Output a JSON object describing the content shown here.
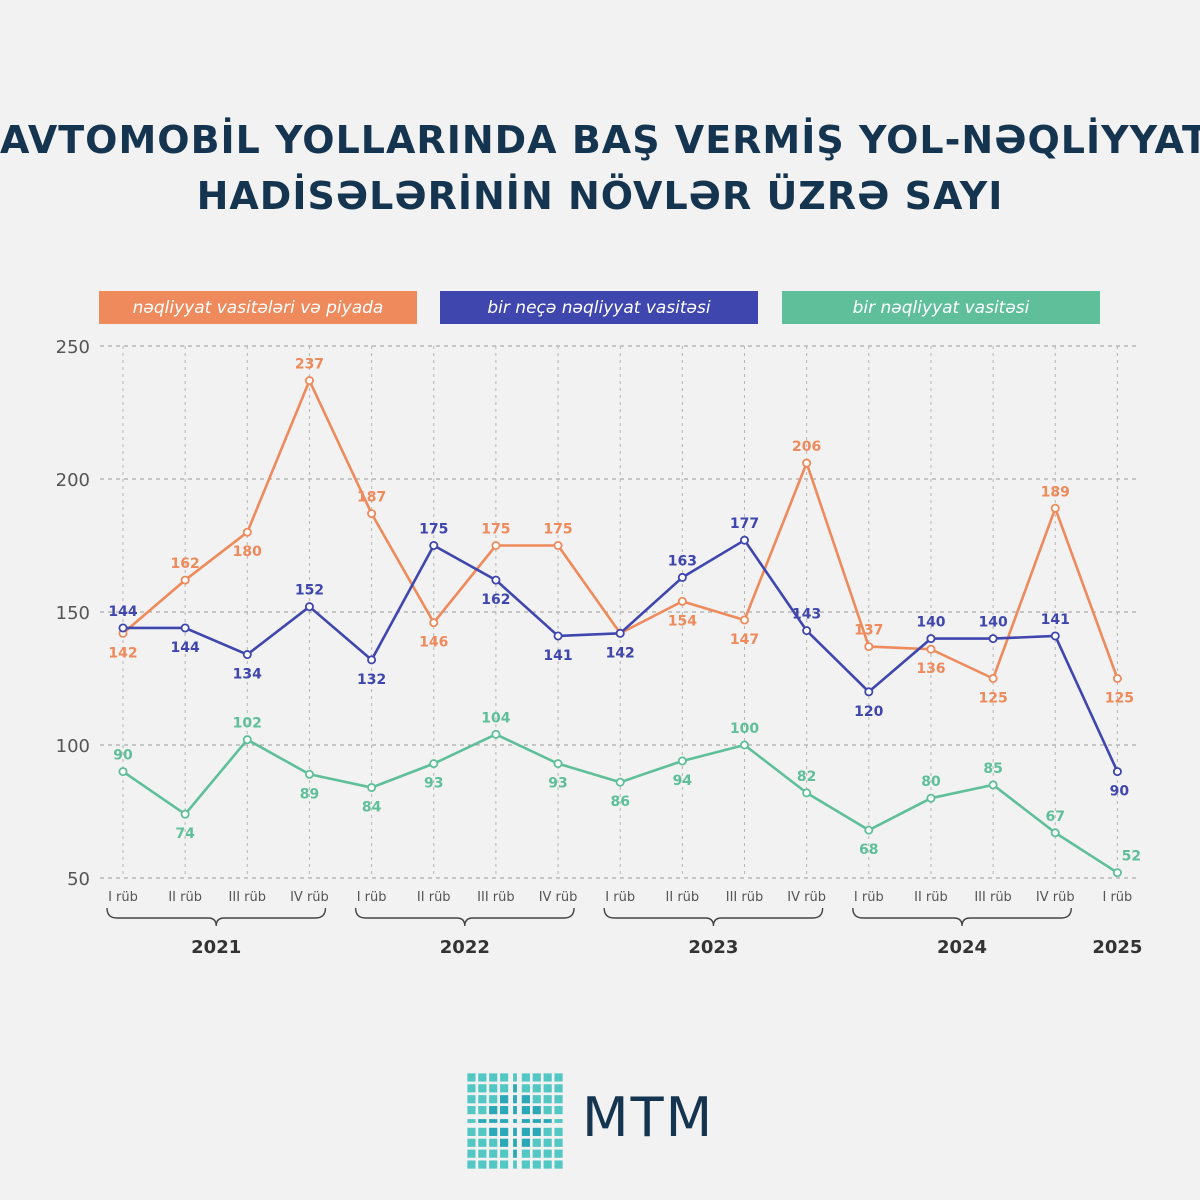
{
  "title": {
    "line1": "AVTOMOBİL YOLLARINDA BAŞ VERMİŞ YOL-NƏQLİYYAT",
    "line2": "HADİSƏLƏRİNİN NÖVLƏR ÜZRƏ SAYI"
  },
  "colors": {
    "orange": "#ee8a5c",
    "blue": "#3f46ad",
    "green": "#5fbf9b",
    "title": "#15344f",
    "axis": "#555555"
  },
  "brand": "MTM",
  "chart_data": {
    "type": "line",
    "title": "AVTOMOBİL YOLLARINDA BAŞ VERMİŞ YOL-NƏQLİYYAT HADİSƏLƏRİNİN NÖVLƏR ÜZRƏ SAYI",
    "categories": [
      "I rüb",
      "II rüb",
      "III rüb",
      "IV rüb",
      "I rüb",
      "II rüb",
      "III rüb",
      "IV rüb",
      "I rüb",
      "II rüb",
      "III rüb",
      "IV rüb",
      "I rüb",
      "II rüb",
      "III rüb",
      "IV rüb",
      "I rüb"
    ],
    "years": [
      {
        "label": "2021",
        "from": 0,
        "to": 3
      },
      {
        "label": "2022",
        "from": 4,
        "to": 7
      },
      {
        "label": "2023",
        "from": 8,
        "to": 11
      },
      {
        "label": "2024",
        "from": 12,
        "to": 15
      },
      {
        "label": "2025",
        "from": 16,
        "to": 16
      }
    ],
    "yticks": [
      50,
      100,
      150,
      200,
      250
    ],
    "ylim": [
      50,
      250
    ],
    "grid": true,
    "legend_position": "top",
    "series": [
      {
        "name": "nəqliyyat vasitələri və piyada",
        "color": "#ee8a5c",
        "values": [
          142,
          162,
          180,
          237,
          187,
          146,
          175,
          175,
          142,
          154,
          147,
          206,
          137,
          136,
          125,
          189,
          125
        ]
      },
      {
        "name": "bir neçə nəqliyyat vasitəsi",
        "color": "#3f46ad",
        "values": [
          144,
          144,
          134,
          152,
          132,
          175,
          162,
          141,
          142,
          163,
          177,
          143,
          120,
          140,
          140,
          141,
          90
        ]
      },
      {
        "name": "bir nəqliyyat vasitəsi",
        "color": "#5fbf9b",
        "values": [
          90,
          74,
          102,
          89,
          84,
          93,
          104,
          93,
          86,
          94,
          100,
          82,
          68,
          80,
          85,
          67,
          52
        ]
      }
    ]
  }
}
